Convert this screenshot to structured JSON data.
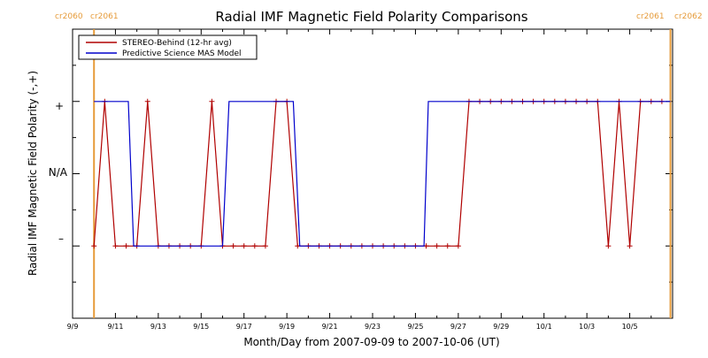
{
  "chart_data": {
    "type": "line",
    "title": "Radial IMF Magnetic Field Polarity Comparisons",
    "xlabel": "Month/Day from 2007-09-09 to 2007-10-06 (UT)",
    "ylabel": "Radial IMF Magnetic Field Polarity (-,+)",
    "x_tick_labels": [
      "9/9",
      "9/11",
      "9/13",
      "9/15",
      "9/17",
      "9/19",
      "9/21",
      "9/23",
      "9/25",
      "9/27",
      "9/29",
      "10/1",
      "10/3",
      "10/5"
    ],
    "y_tick_labels": [
      "+",
      "N/A",
      "–"
    ],
    "y_ticks": [
      1,
      0,
      -1
    ],
    "xlim": [
      0,
      28
    ],
    "ylim": [
      -2,
      2
    ],
    "carrington_rotations": [
      {
        "x": 1.0,
        "left_label": "cr2060",
        "right_label": "cr2061"
      },
      {
        "x": 27.9,
        "left_label": "cr2061",
        "right_label": "cr2062"
      }
    ],
    "legend_position": "top-left",
    "series": [
      {
        "name": "STEREO-Behind (12-hr avg)",
        "color": "#b00000",
        "markers": true,
        "x": [
          1.0,
          1.5,
          2.0,
          2.5,
          3.0,
          3.5,
          4.0,
          4.5,
          5.0,
          5.5,
          6.0,
          6.5,
          7.0,
          7.5,
          8.0,
          8.5,
          9.0,
          9.5,
          10.0,
          10.5,
          11.0,
          11.5,
          12.0,
          12.5,
          13.0,
          13.5,
          14.0,
          14.5,
          15.0,
          15.5,
          16.0,
          16.5,
          17.0,
          17.5,
          18.0,
          18.5,
          19.0,
          19.5,
          20.0,
          20.5,
          21.0,
          21.5,
          22.0,
          22.5,
          23.0,
          23.5,
          24.0,
          24.5,
          25.0,
          25.5,
          26.0,
          26.5,
          27.0,
          27.5
        ],
        "y": [
          -1,
          1,
          -1,
          -1,
          -1,
          1,
          -1,
          -1,
          -1,
          -1,
          -1,
          1,
          -1,
          -1,
          -1,
          -1,
          -1,
          1,
          1,
          -1,
          -1,
          -1,
          -1,
          -1,
          -1,
          -1,
          -1,
          -1,
          -1,
          -1,
          -1,
          -1,
          -1,
          -1,
          -1,
          1,
          1,
          1,
          1,
          1,
          1,
          1,
          1,
          1,
          1,
          1,
          1,
          1,
          -1,
          1,
          -1,
          1,
          1,
          1
        ]
      },
      {
        "name": "Predictive Science MAS Model",
        "color": "#0000cc",
        "markers": false,
        "x": [
          1.0,
          2.6,
          2.85,
          3.4,
          7.0,
          7.3,
          9.5,
          10.3,
          10.6,
          16.4,
          16.6,
          27.9
        ],
        "y": [
          1,
          1,
          -1,
          -1,
          -1,
          1,
          1,
          1,
          -1,
          -1,
          1,
          1
        ]
      }
    ]
  }
}
